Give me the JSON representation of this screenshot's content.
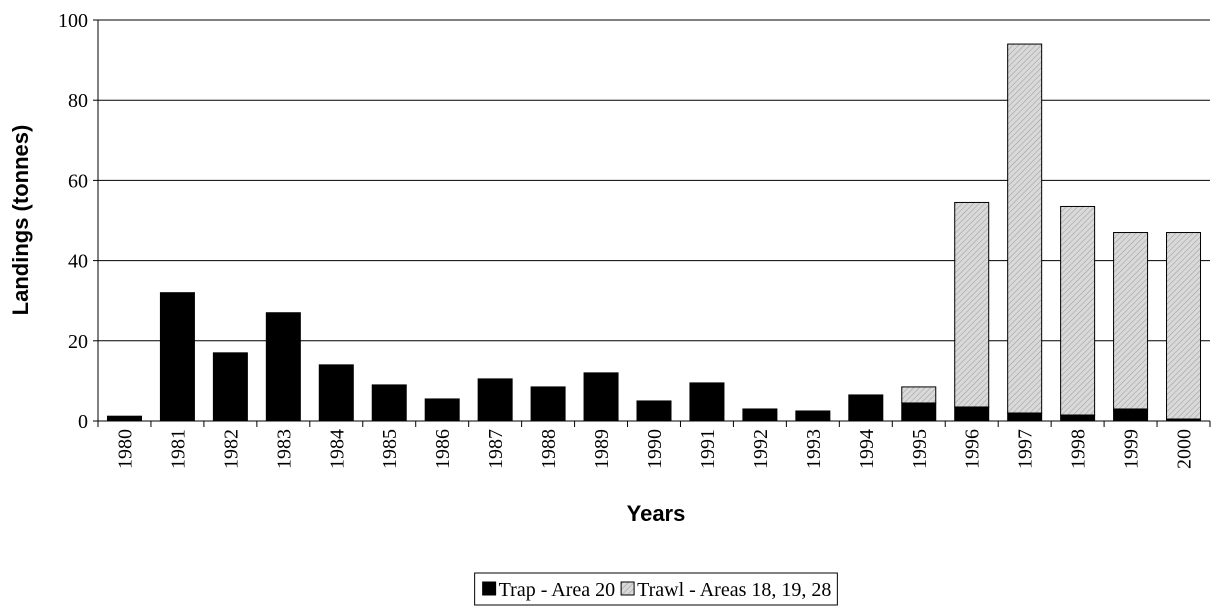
{
  "chart_data": {
    "type": "stacked_bar",
    "x_label": "Years",
    "y_label": "Landings (tonnes)",
    "categories": [
      "1980",
      "1981",
      "1982",
      "1983",
      "1984",
      "1985",
      "1986",
      "1987",
      "1988",
      "1989",
      "1990",
      "1991",
      "1992",
      "1993",
      "1994",
      "1995",
      "1996",
      "1997",
      "1998",
      "1999",
      "2000"
    ],
    "series": [
      {
        "name": "Trap - Area 20",
        "color": "#000000",
        "values": [
          1.2,
          32,
          17,
          27,
          14,
          9,
          5.5,
          10.5,
          8.5,
          12,
          5,
          9.5,
          3,
          2.5,
          6.5,
          4.5,
          3.5,
          2,
          1.5,
          3,
          0.5
        ]
      },
      {
        "name": "Trawl - Areas 18, 19, 28",
        "color": "#d9d9d9",
        "values": [
          null,
          null,
          null,
          null,
          null,
          null,
          null,
          null,
          null,
          null,
          null,
          null,
          null,
          null,
          null,
          4,
          51,
          92,
          52,
          44,
          46.5
        ]
      }
    ],
    "ylim": [
      0,
      100
    ],
    "yticks": [
      0,
      20,
      40,
      60,
      80,
      100
    ],
    "grid": true,
    "legend": "bottom"
  }
}
